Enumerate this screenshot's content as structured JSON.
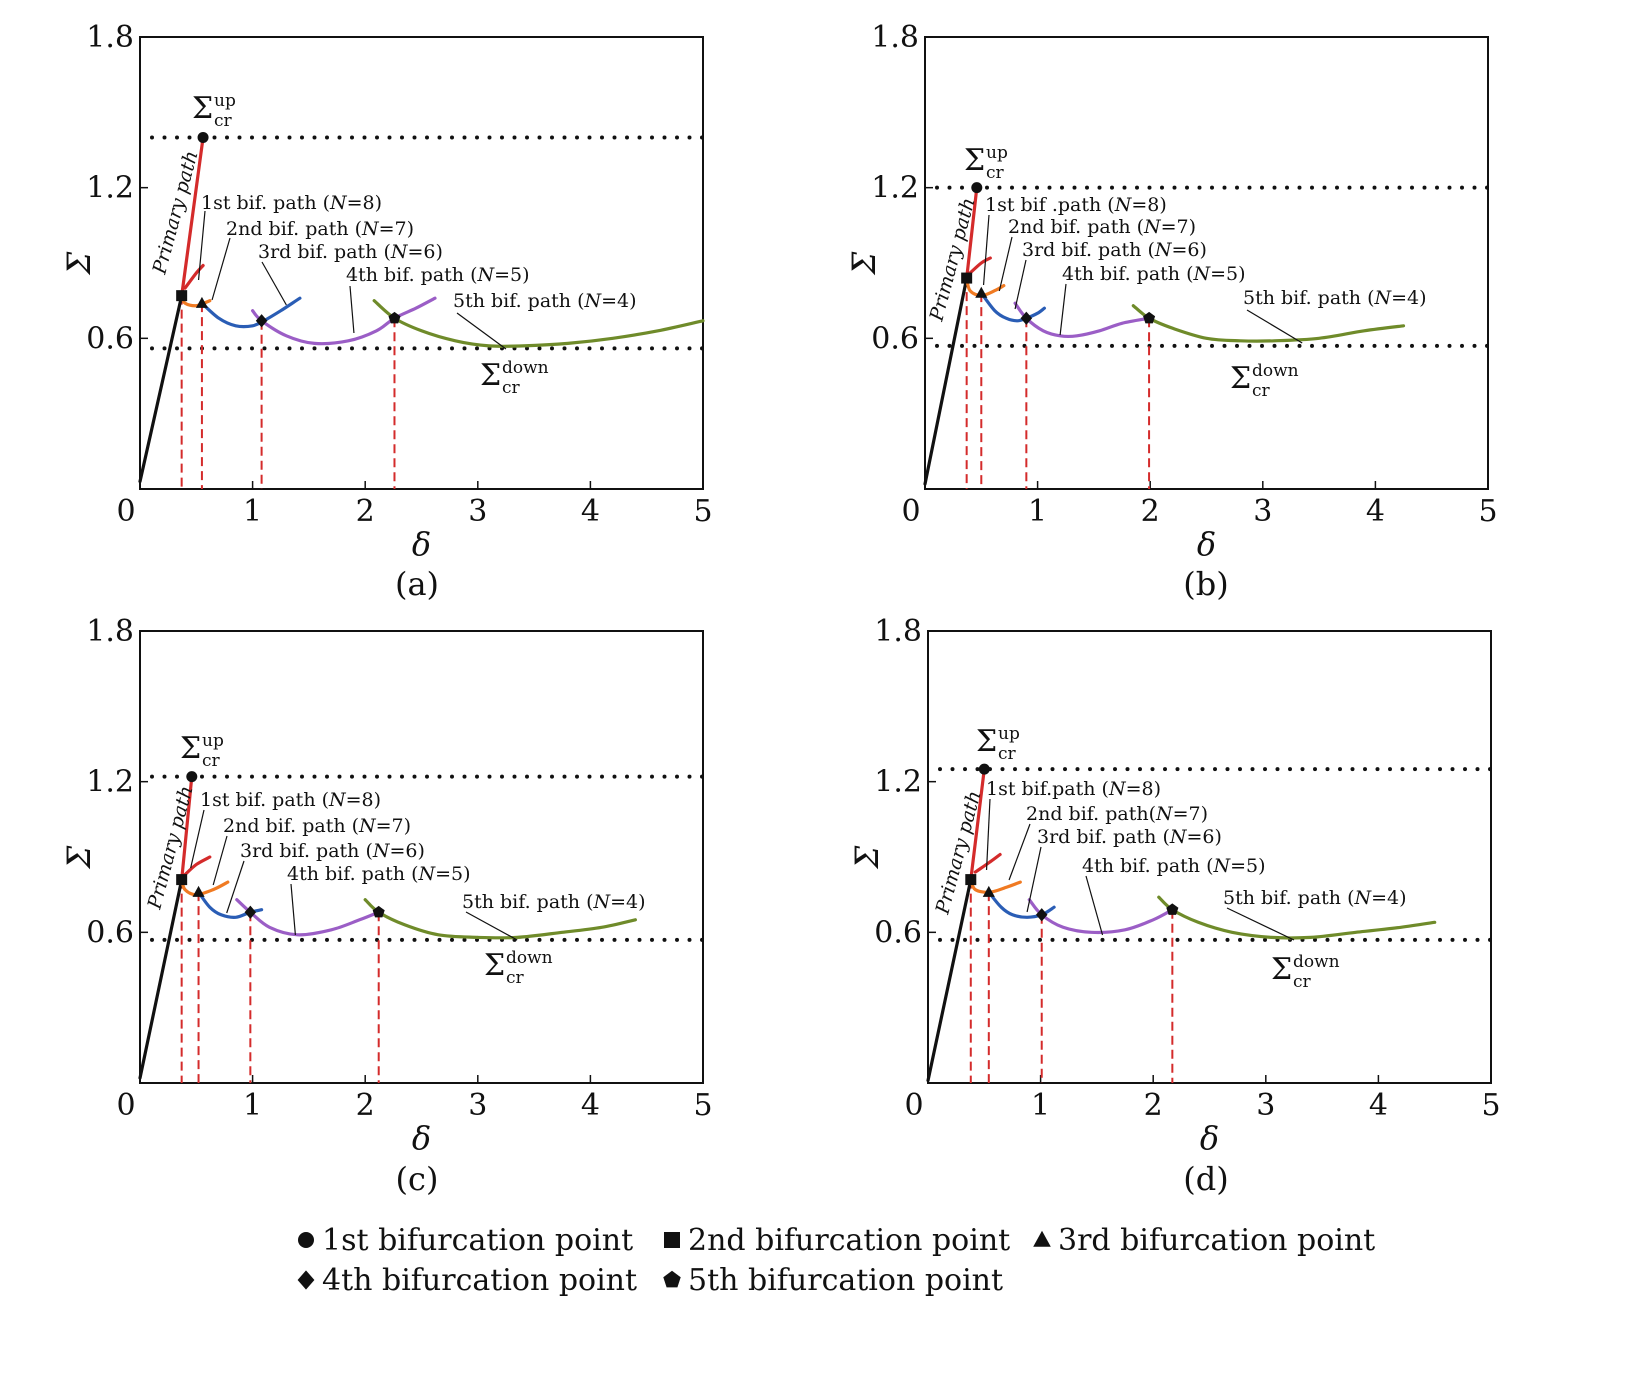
{
  "chart_data": [
    {
      "type": "line",
      "panel_caption": "(a)",
      "xlabel": "δ",
      "ylabel": "Σ",
      "xlim": [
        0,
        5
      ],
      "ylim": [
        0,
        1.8
      ],
      "xticks": [
        "0",
        "1",
        "2",
        "3",
        "4",
        "5"
      ],
      "yticks": [
        "0.6",
        "1.2",
        "1.8"
      ],
      "sigma_up": 1.4,
      "sigma_down": 0.56,
      "sigma_up_label": "Σ",
      "sigma_up_sup": "up",
      "sigma_up_sub": "cr",
      "sigma_down_label": "Σ",
      "sigma_down_sup": "down",
      "sigma_down_sub": "cr",
      "primary_label": "Primary path",
      "points": [
        {
          "marker": "circle",
          "x": 0.56,
          "y": 1.4
        },
        {
          "marker": "square",
          "x": 0.37,
          "y": 0.77
        },
        {
          "marker": "triangle",
          "x": 0.55,
          "y": 0.74
        },
        {
          "marker": "diamond",
          "x": 1.08,
          "y": 0.67
        },
        {
          "marker": "pentagon",
          "x": 2.26,
          "y": 0.68
        }
      ],
      "series": [
        {
          "name": "Primary path",
          "color": "#111111",
          "x": [
            0,
            0.37
          ],
          "y": [
            0.03,
            0.77
          ]
        },
        {
          "name": "Primary path (upper)",
          "color": "#d42b2b",
          "x": [
            0.37,
            0.56
          ],
          "y": [
            0.77,
            1.4
          ]
        },
        {
          "name": "1st bif. path (N=8)",
          "color": "#d42b2b",
          "x": [
            0.4,
            0.5,
            0.56
          ],
          "y": [
            0.8,
            0.86,
            0.89
          ]
        },
        {
          "name": "2nd bif. path (N=7)",
          "color": "#f07a22",
          "x": [
            0.37,
            0.4,
            0.5,
            0.62
          ],
          "y": [
            0.77,
            0.74,
            0.73,
            0.75
          ]
        },
        {
          "name": "3rd bif. path (N=6)",
          "color": "#2a5db5",
          "x": [
            0.55,
            0.7,
            0.85,
            1.0,
            1.1,
            1.25,
            1.42
          ],
          "y": [
            0.74,
            0.68,
            0.65,
            0.65,
            0.67,
            0.71,
            0.76
          ]
        },
        {
          "name": "4th bif. path (N=5)",
          "color": "#9b5ec6",
          "x": [
            1.0,
            1.08,
            1.3,
            1.55,
            1.85,
            2.1,
            2.26,
            2.45,
            2.62
          ],
          "y": [
            0.71,
            0.67,
            0.61,
            0.58,
            0.59,
            0.63,
            0.68,
            0.72,
            0.76
          ]
        },
        {
          "name": "5th bif. path (N=4)",
          "color": "#6f8b2a",
          "x": [
            2.08,
            2.26,
            2.5,
            2.8,
            3.1,
            3.4,
            3.8,
            4.2,
            4.6,
            5.0
          ],
          "y": [
            0.75,
            0.68,
            0.63,
            0.59,
            0.57,
            0.57,
            0.58,
            0.6,
            0.63,
            0.67
          ]
        }
      ],
      "annotations": [
        {
          "text": "1st bif. path (",
          "n": "N",
          "tail": "=8)"
        },
        {
          "text": "2nd bif. path (",
          "n": "N",
          "tail": "=7)"
        },
        {
          "text": "3rd bif. path (",
          "n": "N",
          "tail": "=6)"
        },
        {
          "text": "4th bif. path (",
          "n": "N",
          "tail": "=5)"
        },
        {
          "text": "5th bif. path (",
          "n": "N",
          "tail": "=4)"
        }
      ]
    },
    {
      "type": "line",
      "panel_caption": "(b)",
      "xlabel": "δ",
      "ylabel": "Σ",
      "xlim": [
        0,
        5
      ],
      "ylim": [
        0,
        1.8
      ],
      "xticks": [
        "0",
        "1",
        "2",
        "3",
        "4",
        "5"
      ],
      "yticks": [
        "0.6",
        "1.2",
        "1.8"
      ],
      "sigma_up": 1.2,
      "sigma_down": 0.57,
      "sigma_up_label": "Σ",
      "sigma_up_sup": "up",
      "sigma_up_sub": "cr",
      "sigma_down_label": "Σ",
      "sigma_down_sup": "down",
      "sigma_down_sub": "cr",
      "primary_label": "Primary path",
      "points": [
        {
          "marker": "circle",
          "x": 0.46,
          "y": 1.2
        },
        {
          "marker": "square",
          "x": 0.37,
          "y": 0.84
        },
        {
          "marker": "triangle",
          "x": 0.5,
          "y": 0.78
        },
        {
          "marker": "diamond",
          "x": 0.9,
          "y": 0.68
        },
        {
          "marker": "pentagon",
          "x": 1.99,
          "y": 0.68
        }
      ],
      "series": [
        {
          "name": "Primary path",
          "color": "#111111",
          "x": [
            0,
            0.37
          ],
          "y": [
            0.02,
            0.84
          ]
        },
        {
          "name": "Primary path (upper)",
          "color": "#d42b2b",
          "x": [
            0.37,
            0.46
          ],
          "y": [
            0.84,
            1.2
          ]
        },
        {
          "name": "1st bif. path (N=8)",
          "color": "#d42b2b",
          "x": [
            0.4,
            0.5,
            0.58
          ],
          "y": [
            0.86,
            0.9,
            0.92
          ]
        },
        {
          "name": "2nd bif. path (N=7)",
          "color": "#f07a22",
          "x": [
            0.37,
            0.4,
            0.5,
            0.62,
            0.7
          ],
          "y": [
            0.84,
            0.79,
            0.77,
            0.79,
            0.81
          ]
        },
        {
          "name": "3rd bif. path (N=6)",
          "color": "#2a5db5",
          "x": [
            0.5,
            0.62,
            0.72,
            0.82,
            0.9,
            1.0,
            1.06
          ],
          "y": [
            0.78,
            0.71,
            0.68,
            0.67,
            0.68,
            0.7,
            0.72
          ]
        },
        {
          "name": "4th bif. path (N=5)",
          "color": "#9b5ec6",
          "x": [
            0.8,
            0.9,
            1.05,
            1.2,
            1.35,
            1.55,
            1.75,
            1.99
          ],
          "y": [
            0.74,
            0.68,
            0.63,
            0.61,
            0.61,
            0.63,
            0.66,
            0.68
          ]
        },
        {
          "name": "5th bif. path (N=4)",
          "color": "#6f8b2a",
          "x": [
            1.85,
            1.99,
            2.2,
            2.5,
            2.8,
            3.1,
            3.5,
            3.9,
            4.25
          ],
          "y": [
            0.73,
            0.68,
            0.64,
            0.6,
            0.59,
            0.59,
            0.6,
            0.63,
            0.65
          ]
        }
      ],
      "annotations": [
        {
          "text": "1st bif .path (",
          "n": "N",
          "tail": "=8)"
        },
        {
          "text": "2nd bif. path (",
          "n": "N",
          "tail": "=7)"
        },
        {
          "text": "3rd bif. path (",
          "n": "N",
          "tail": "=6)"
        },
        {
          "text": "4th bif. path (",
          "n": "N",
          "tail": "=5)"
        },
        {
          "text": "5th bif. path (",
          "n": "N",
          "tail": "=4)"
        }
      ]
    },
    {
      "type": "line",
      "panel_caption": "(c)",
      "xlabel": "δ",
      "ylabel": "Σ",
      "xlim": [
        0,
        5
      ],
      "ylim": [
        0,
        1.8
      ],
      "xticks": [
        "0",
        "1",
        "2",
        "3",
        "4",
        "5"
      ],
      "yticks": [
        "0.6",
        "1.2",
        "1.8"
      ],
      "sigma_up": 1.22,
      "sigma_down": 0.57,
      "sigma_up_label": "Σ",
      "sigma_up_sup": "up",
      "sigma_up_sub": "cr",
      "sigma_down_label": "Σ",
      "sigma_down_sup": "down",
      "sigma_down_sub": "cr",
      "primary_label": "Primary path",
      "points": [
        {
          "marker": "circle",
          "x": 0.46,
          "y": 1.22
        },
        {
          "marker": "square",
          "x": 0.37,
          "y": 0.81
        },
        {
          "marker": "triangle",
          "x": 0.52,
          "y": 0.76
        },
        {
          "marker": "diamond",
          "x": 0.98,
          "y": 0.68
        },
        {
          "marker": "pentagon",
          "x": 2.12,
          "y": 0.68
        }
      ],
      "series": [
        {
          "name": "Primary path",
          "color": "#111111",
          "x": [
            0,
            0.37
          ],
          "y": [
            0.02,
            0.81
          ]
        },
        {
          "name": "Primary path (upper)",
          "color": "#d42b2b",
          "x": [
            0.37,
            0.46
          ],
          "y": [
            0.81,
            1.22
          ]
        },
        {
          "name": "1st bif. path (N=8)",
          "color": "#d42b2b",
          "x": [
            0.4,
            0.5,
            0.62
          ],
          "y": [
            0.83,
            0.87,
            0.9
          ]
        },
        {
          "name": "2nd bif. path (N=7)",
          "color": "#f07a22",
          "x": [
            0.37,
            0.4,
            0.5,
            0.65,
            0.78
          ],
          "y": [
            0.81,
            0.77,
            0.75,
            0.77,
            0.8
          ]
        },
        {
          "name": "3rd bif. path (N=6)",
          "color": "#2a5db5",
          "x": [
            0.52,
            0.62,
            0.72,
            0.85,
            0.98,
            1.08
          ],
          "y": [
            0.76,
            0.7,
            0.67,
            0.66,
            0.68,
            0.69
          ]
        },
        {
          "name": "4th bif. path (N=5)",
          "color": "#9b5ec6",
          "x": [
            0.86,
            0.98,
            1.15,
            1.4,
            1.7,
            1.95,
            2.12
          ],
          "y": [
            0.73,
            0.68,
            0.62,
            0.59,
            0.61,
            0.65,
            0.68
          ]
        },
        {
          "name": "5th bif. path (N=4)",
          "color": "#6f8b2a",
          "x": [
            2.0,
            2.12,
            2.35,
            2.65,
            3.0,
            3.35,
            3.75,
            4.1,
            4.4
          ],
          "y": [
            0.73,
            0.68,
            0.63,
            0.59,
            0.58,
            0.58,
            0.6,
            0.62,
            0.65
          ]
        }
      ],
      "annotations": [
        {
          "text": "1st bif. path (",
          "n": "N",
          "tail": "=8)"
        },
        {
          "text": "2nd bif. path (",
          "n": "N",
          "tail": "=7)"
        },
        {
          "text": "3rd bif. path (",
          "n": "N",
          "tail": "=6)"
        },
        {
          "text": "4th bif. path (",
          "n": "N",
          "tail": "=5)"
        },
        {
          "text": "5th bif. path (",
          "n": "N",
          "tail": "=4)"
        }
      ]
    },
    {
      "type": "line",
      "panel_caption": "(d)",
      "xlabel": "δ",
      "ylabel": "Σ",
      "xlim": [
        0,
        5
      ],
      "ylim": [
        0,
        1.8
      ],
      "xticks": [
        "0",
        "1",
        "2",
        "3",
        "4",
        "5"
      ],
      "yticks": [
        "0.6",
        "1.2",
        "1.8"
      ],
      "sigma_up": 1.25,
      "sigma_down": 0.57,
      "sigma_up_label": "Σ",
      "sigma_up_sup": "up",
      "sigma_up_sub": "cr",
      "sigma_down_label": "Σ",
      "sigma_down_sup": "down",
      "sigma_down_sub": "cr",
      "primary_label": "Primary path",
      "points": [
        {
          "marker": "circle",
          "x": 0.5,
          "y": 1.25
        },
        {
          "marker": "square",
          "x": 0.38,
          "y": 0.81
        },
        {
          "marker": "triangle",
          "x": 0.54,
          "y": 0.76
        },
        {
          "marker": "diamond",
          "x": 1.01,
          "y": 0.67
        },
        {
          "marker": "pentagon",
          "x": 2.17,
          "y": 0.69
        }
      ],
      "series": [
        {
          "name": "Primary path",
          "color": "#111111",
          "x": [
            0,
            0.38
          ],
          "y": [
            0.01,
            0.81
          ]
        },
        {
          "name": "Primary path (upper)",
          "color": "#d42b2b",
          "x": [
            0.38,
            0.5
          ],
          "y": [
            0.81,
            1.25
          ]
        },
        {
          "name": "1st bif. path (N=8)",
          "color": "#d42b2b",
          "x": [
            0.42,
            0.55,
            0.64
          ],
          "y": [
            0.84,
            0.88,
            0.91
          ]
        },
        {
          "name": "2nd bif. path (N=7)",
          "color": "#f07a22",
          "x": [
            0.38,
            0.42,
            0.55,
            0.7,
            0.82
          ],
          "y": [
            0.81,
            0.77,
            0.76,
            0.78,
            0.8
          ]
        },
        {
          "name": "3rd bif. path (N=6)",
          "color": "#2a5db5",
          "x": [
            0.54,
            0.65,
            0.75,
            0.88,
            1.01,
            1.12
          ],
          "y": [
            0.76,
            0.7,
            0.67,
            0.66,
            0.67,
            0.7
          ]
        },
        {
          "name": "4th bif. path (N=5)",
          "color": "#9b5ec6",
          "x": [
            0.9,
            1.01,
            1.2,
            1.45,
            1.75,
            2.0,
            2.17
          ],
          "y": [
            0.73,
            0.67,
            0.62,
            0.6,
            0.61,
            0.65,
            0.69
          ]
        },
        {
          "name": "5th bif. path (N=4)",
          "color": "#6f8b2a",
          "x": [
            2.05,
            2.17,
            2.4,
            2.7,
            3.05,
            3.4,
            3.8,
            4.2,
            4.5
          ],
          "y": [
            0.74,
            0.69,
            0.64,
            0.6,
            0.58,
            0.58,
            0.6,
            0.62,
            0.64
          ]
        }
      ],
      "annotations": [
        {
          "text": "1st bif.path (",
          "n": "N",
          "tail": "=8)"
        },
        {
          "text": "2nd bif. path(",
          "n": "N",
          "tail": "=7)"
        },
        {
          "text": "3rd bif. path (",
          "n": "N",
          "tail": "=6)"
        },
        {
          "text": "4th bif. path (",
          "n": "N",
          "tail": "=5)"
        },
        {
          "text": "5th bif. path (",
          "n": "N",
          "tail": "=4)"
        }
      ]
    }
  ],
  "legend": [
    {
      "marker": "circle",
      "label": "1st bifurcation point"
    },
    {
      "marker": "square",
      "label": "2nd bifurcation point"
    },
    {
      "marker": "triangle",
      "label": "3rd bifurcation point"
    },
    {
      "marker": "diamond",
      "label": "4th bifurcation point"
    },
    {
      "marker": "pentagon",
      "label": "5th bifurcation point"
    }
  ],
  "colors": {
    "axis": "#111111",
    "dashed": "#d42b2b",
    "marker": "#111111"
  }
}
